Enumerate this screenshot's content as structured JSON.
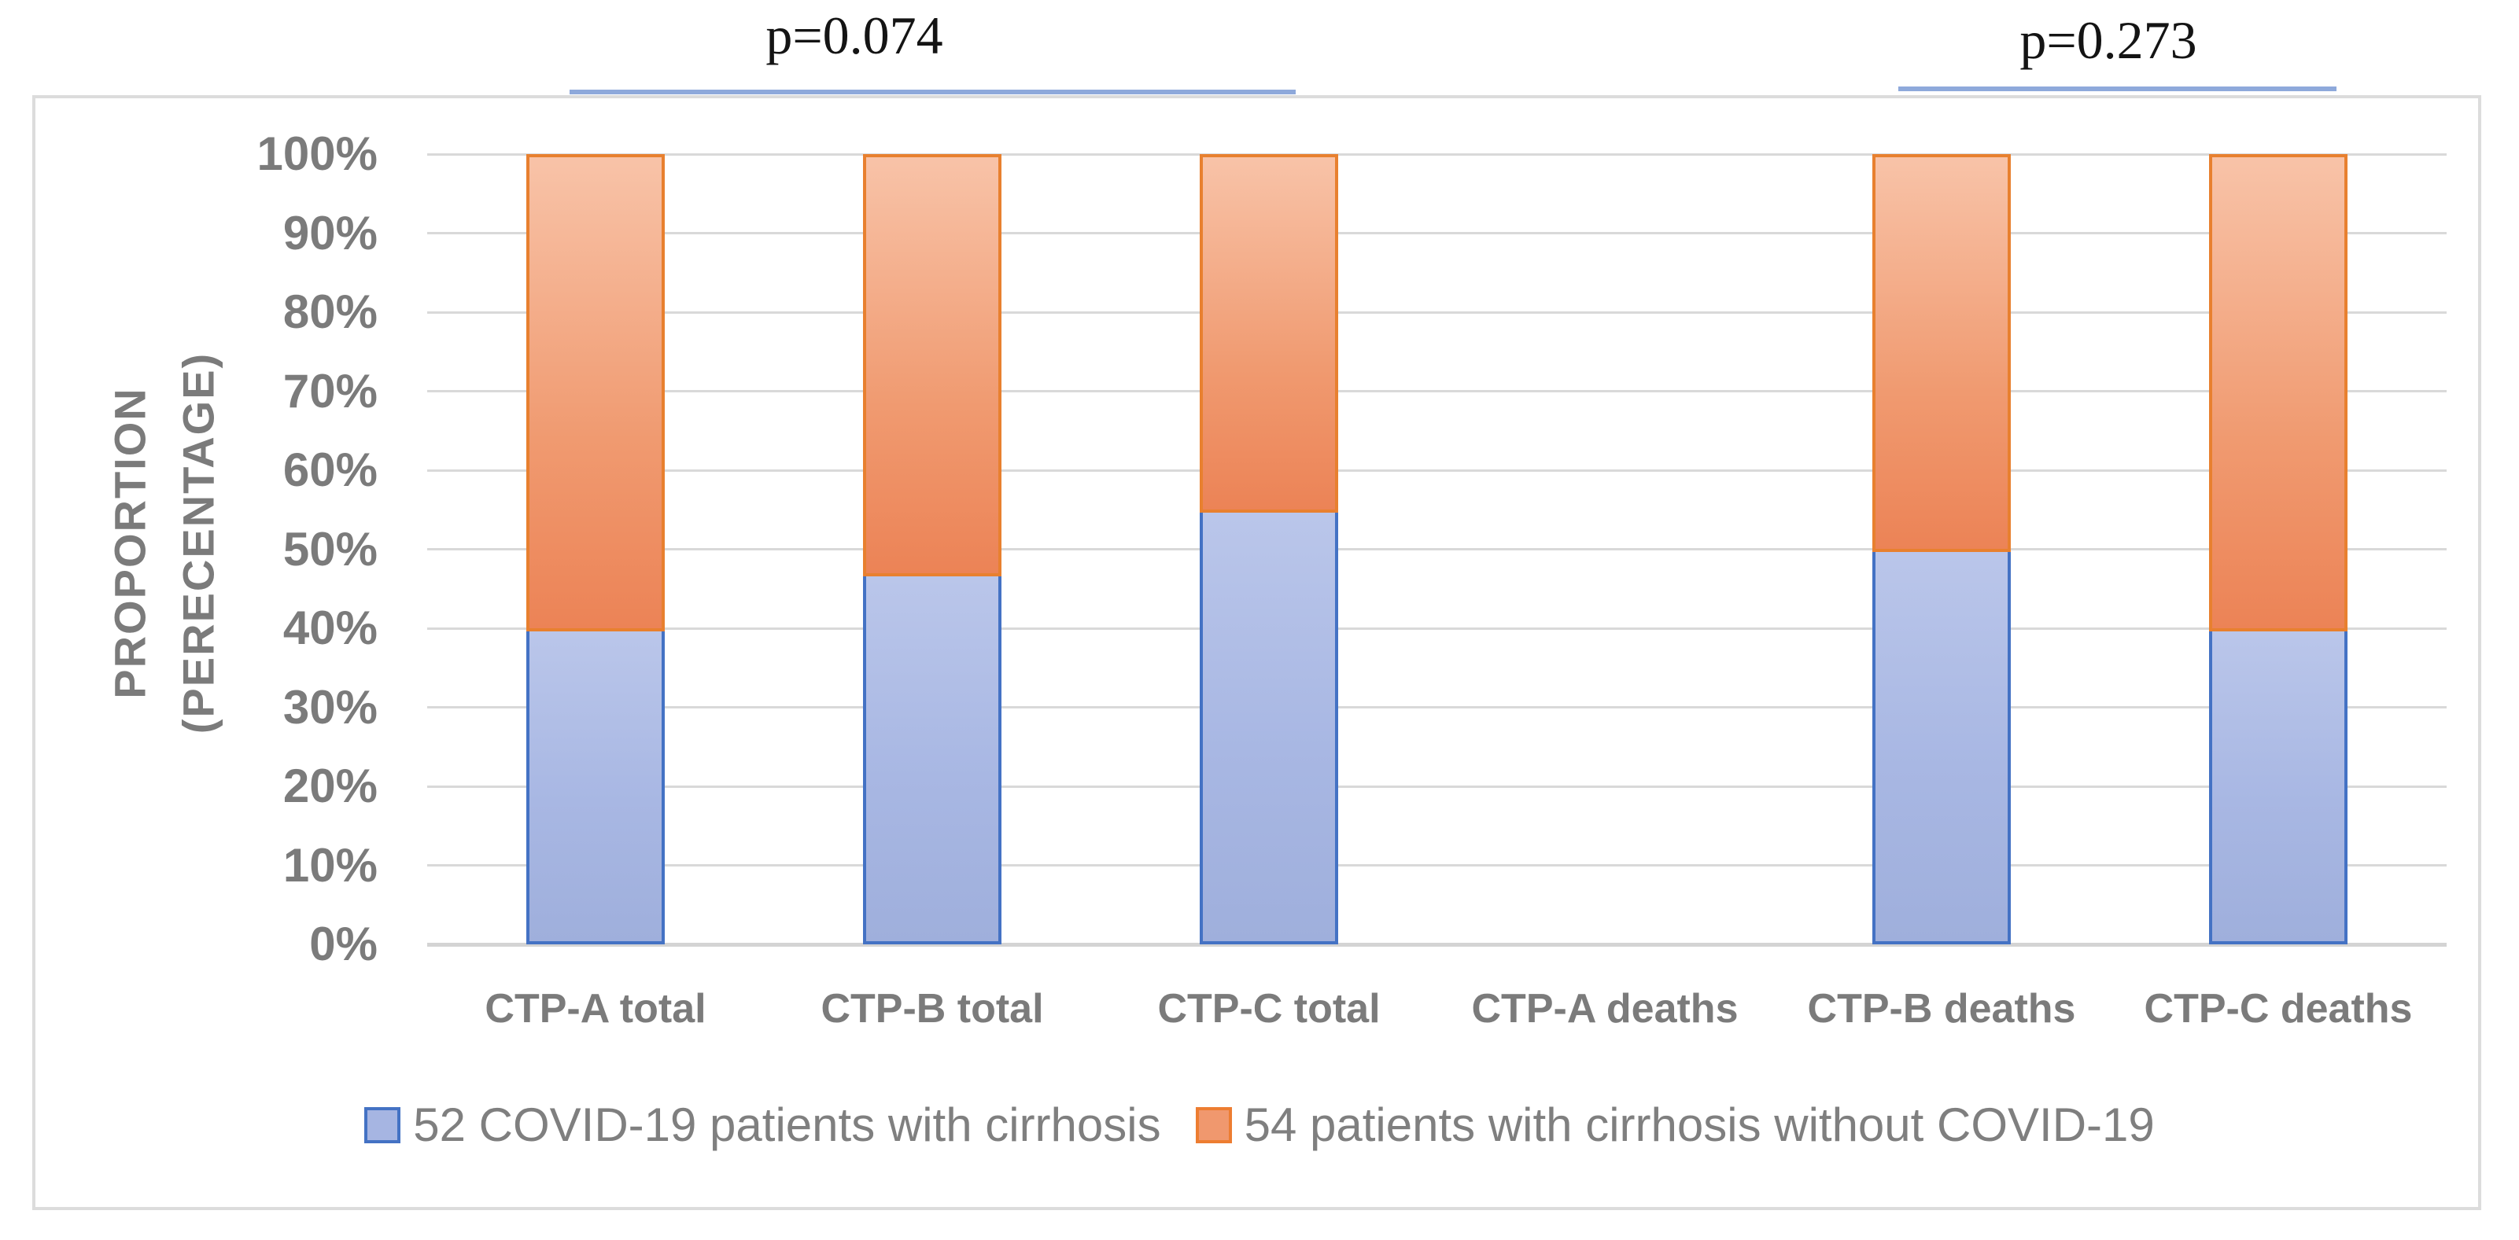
{
  "figure": {
    "background": "#ffffff"
  },
  "annotations": [
    {
      "text": "p=0.074",
      "over_categories": [
        "CTP-A total",
        "CTP-B total",
        "CTP-C total"
      ]
    },
    {
      "text": "p=0.273",
      "over_categories": [
        "CTP-B deaths",
        "CTP-C deaths"
      ]
    }
  ],
  "chart_data": {
    "type": "bar",
    "stacked": true,
    "title": "",
    "ylabel_line1": "PROPORTION",
    "ylabel_line2": "(PERECENTAGE)",
    "xlabel": "",
    "ylim": [
      0,
      100
    ],
    "grid": true,
    "legend_position": "bottom",
    "categories": [
      "CTP-A total",
      "CTP-B total",
      "CTP-C total",
      "CTP-A deaths",
      "CTP-B deaths",
      "CTP-C deaths"
    ],
    "yticks": [
      {
        "v": 0,
        "label": "0%"
      },
      {
        "v": 10,
        "label": "10%"
      },
      {
        "v": 20,
        "label": "20%"
      },
      {
        "v": 30,
        "label": "30%"
      },
      {
        "v": 40,
        "label": "40%"
      },
      {
        "v": 50,
        "label": "50%"
      },
      {
        "v": 60,
        "label": "60%"
      },
      {
        "v": 70,
        "label": "70%"
      },
      {
        "v": 80,
        "label": "80%"
      },
      {
        "v": 90,
        "label": "90%"
      },
      {
        "v": 100,
        "label": "100%"
      }
    ],
    "series": [
      {
        "name": "52 COVID-19 patients with cirrhosis",
        "fill": "#a6b5e2",
        "border": "#4472c4",
        "values": [
          40,
          47,
          55,
          0,
          50,
          40
        ]
      },
      {
        "name": "54 patients with cirrhosis without COVID-19",
        "fill": "#f29a71",
        "border": "#ed7d31",
        "values": [
          60,
          53,
          45,
          0,
          50,
          60
        ]
      }
    ]
  },
  "styles": {
    "sig_line_color": "#8ea9db",
    "grid_color": "#d9d9d9",
    "axis_text_color": "#7b7b7b",
    "frame_color": "#dcdcdc"
  }
}
